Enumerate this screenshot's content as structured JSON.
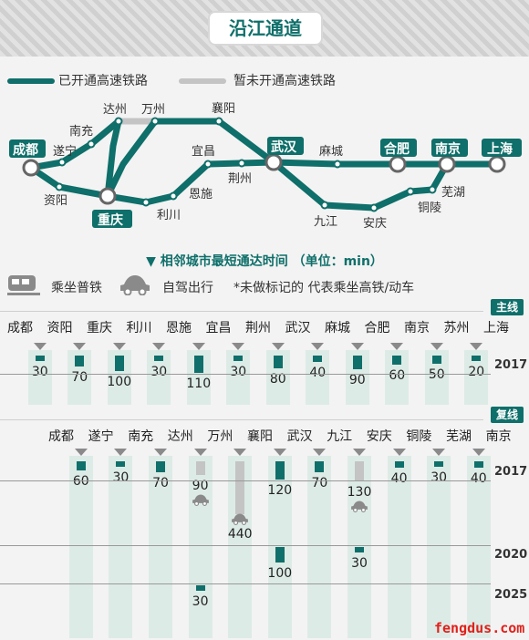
{
  "title": "沿江通道",
  "legend": {
    "open": "已开通高速铁路",
    "unopened": "暂未开通高速铁路"
  },
  "colors": {
    "primary": "#0f6f6a",
    "gray": "#c4c4c4",
    "watermark": "#e0211b"
  },
  "map": {
    "cities": [
      "成都",
      "遂宁",
      "南充",
      "资阳",
      "达州",
      "万州",
      "重庆",
      "利川",
      "恩施",
      "宜昌",
      "荆州",
      "襄阳",
      "武汉",
      "麻城",
      "九江",
      "安庆",
      "合肥",
      "南京",
      "上海",
      "芜湖",
      "铜陵"
    ],
    "hubs": [
      "成都",
      "重庆",
      "武汉",
      "合肥",
      "南京",
      "上海"
    ]
  },
  "subtitle": "▼  相邻城市最短通达时间  （单位：min）",
  "key": {
    "train": "乘坐普铁",
    "car": "自驾出行",
    "note": "*未做标记的 代表乘坐高铁/动车"
  },
  "main_line": {
    "badge": "主线",
    "year": "2017",
    "cities": [
      "成都",
      "资阳",
      "重庆",
      "利川",
      "恩施",
      "宜昌",
      "荆州",
      "武汉",
      "麻城",
      "合肥",
      "南京",
      "苏州",
      "上海"
    ],
    "times": [
      "30",
      "70",
      "100",
      "30",
      "110",
      "30",
      "80",
      "40",
      "90",
      "60",
      "50",
      "20"
    ]
  },
  "second_line": {
    "badge": "复线",
    "years": [
      "2017",
      "2020",
      "2025"
    ],
    "cities": [
      "成都",
      "遂宁",
      "南充",
      "达州",
      "万州",
      "襄阳",
      "武汉",
      "九江",
      "安庆",
      "铜陵",
      "芜湖",
      "南京"
    ],
    "t2017": [
      "60",
      "30",
      "70",
      "90",
      "440",
      "120",
      "70",
      "130",
      "40",
      "30",
      "40"
    ],
    "t2020": [
      "100",
      "30"
    ],
    "t2025": [
      "30"
    ]
  },
  "watermark": "fengdus.com"
}
